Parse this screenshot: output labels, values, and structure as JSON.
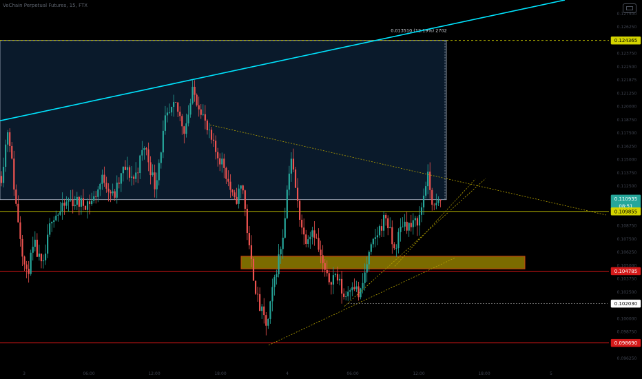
{
  "header": {
    "title": "VeChain Perpetual Futures, 15, FTX"
  },
  "colors": {
    "up": "#26a69a",
    "down": "#ef5350",
    "trend": "#00e5ff",
    "box": "#0a1a2b",
    "support": "#ff1a1a",
    "level": "#d4d400",
    "zone": "#7b6b00"
  },
  "chart_data": {
    "type": "candlestick",
    "title": "VeChain Perpetual Futures, 15, FTX",
    "ylim": [
      0.0968,
      0.1278
    ],
    "xlim": [
      0,
      932
    ],
    "x_ticks": [
      {
        "x": 35,
        "label": "3"
      },
      {
        "x": 129,
        "label": "06:00"
      },
      {
        "x": 224,
        "label": "12:00"
      },
      {
        "x": 320,
        "label": "18:00"
      },
      {
        "x": 417,
        "label": "4"
      },
      {
        "x": 512,
        "label": "06:00"
      },
      {
        "x": 608,
        "label": "12:00"
      },
      {
        "x": 703,
        "label": "18:00"
      },
      {
        "x": 800,
        "label": "5"
      }
    ],
    "y_ticks": [
      "0.127500",
      "0.126250",
      "0.125000",
      "0.123750",
      "0.122500",
      "0.121875",
      "0.121250",
      "0.120000",
      "0.118750",
      "0.117500",
      "0.116250",
      "0.115000",
      "0.113750",
      "0.112500",
      "0.111250",
      "0.110000",
      "0.108750",
      "0.107500",
      "0.106250",
      "0.105000",
      "0.103750",
      "0.102500",
      "0.101250",
      "0.100000",
      "0.098750",
      "0.097500",
      "0.096250"
    ],
    "price_labels": [
      {
        "value": 0.124365,
        "label": "0.124365",
        "style": "level"
      },
      {
        "value": 0.110935,
        "label": "0.110935",
        "style": "last"
      },
      {
        "value": 0.109855,
        "label": "0.109855",
        "style": "level"
      },
      {
        "value": 0.104785,
        "label": "0.104785",
        "style": "support"
      },
      {
        "value": 0.10203,
        "label": "0.102030",
        "style": "plain"
      },
      {
        "value": 0.09869,
        "label": "0.098690",
        "style": "support"
      }
    ],
    "countdown": "08:51",
    "measure_label": "0.013510 (12.19%) 2702",
    "horizontal_lines": [
      {
        "value": 0.124365,
        "color": "#d4d400",
        "dashed": true
      },
      {
        "value": 0.109855,
        "color": "#d4d400",
        "dashed": false
      },
      {
        "value": 0.104785,
        "color": "#ff1a1a",
        "dashed": false
      },
      {
        "value": 0.09869,
        "color": "#ff1a1a",
        "dashed": false
      }
    ],
    "range_box": {
      "x1": 0,
      "x2": 648,
      "top": 0.124365,
      "bottom": 0.110855
    },
    "zone": {
      "x1": 350,
      "x2": 762,
      "top": 0.10605,
      "bottom": 0.10498
    },
    "trendlines": [
      {
        "x1": 0,
        "y1": 0.11755,
        "x2": 820,
        "y2": 0.1278,
        "color": "#00e5ff",
        "width": 1.6,
        "dash": false
      },
      {
        "x1": 305,
        "y1": 0.1172,
        "x2": 880,
        "y2": 0.10955,
        "color": "#b8a400",
        "width": 0.8,
        "dash": true
      },
      {
        "x1": 390,
        "y1": 0.0985,
        "x2": 660,
        "y2": 0.1059,
        "color": "#b8a400",
        "width": 0.8,
        "dash": true
      },
      {
        "x1": 500,
        "y1": 0.1018,
        "x2": 705,
        "y2": 0.11265,
        "color": "#b8a400",
        "width": 0.8,
        "dash": true
      },
      {
        "x1": 573,
        "y1": 0.1052,
        "x2": 690,
        "y2": 0.1126,
        "color": "#b8a400",
        "width": 0.8,
        "dash": true
      },
      {
        "x1": 505,
        "y1": 0.10203,
        "x2": 882,
        "y2": 0.10203,
        "color": "#777777",
        "width": 0.8,
        "dash": true
      }
    ],
    "anchors": [
      [
        0,
        0.112
      ],
      [
        12,
        0.1172
      ],
      [
        22,
        0.111
      ],
      [
        38,
        0.1043
      ],
      [
        50,
        0.107
      ],
      [
        62,
        0.1048
      ],
      [
        75,
        0.1095
      ],
      [
        88,
        0.1098
      ],
      [
        100,
        0.1108
      ],
      [
        120,
        0.1105
      ],
      [
        135,
        0.1108
      ],
      [
        150,
        0.1128
      ],
      [
        165,
        0.111
      ],
      [
        180,
        0.1135
      ],
      [
        195,
        0.1126
      ],
      [
        210,
        0.1155
      ],
      [
        225,
        0.112
      ],
      [
        240,
        0.1175
      ],
      [
        255,
        0.1188
      ],
      [
        268,
        0.1168
      ],
      [
        280,
        0.12
      ],
      [
        292,
        0.1186
      ],
      [
        300,
        0.1168
      ],
      [
        312,
        0.115
      ],
      [
        325,
        0.1138
      ],
      [
        340,
        0.1105
      ],
      [
        352,
        0.1122
      ],
      [
        362,
        0.1065
      ],
      [
        375,
        0.102
      ],
      [
        388,
        0.1
      ],
      [
        398,
        0.104
      ],
      [
        410,
        0.1075
      ],
      [
        422,
        0.1148
      ],
      [
        432,
        0.1105
      ],
      [
        442,
        0.1075
      ],
      [
        455,
        0.1085
      ],
      [
        465,
        0.106
      ],
      [
        475,
        0.104
      ],
      [
        488,
        0.1045
      ],
      [
        500,
        0.1025
      ],
      [
        512,
        0.104
      ],
      [
        522,
        0.1025
      ],
      [
        535,
        0.106
      ],
      [
        548,
        0.108
      ],
      [
        560,
        0.1095
      ],
      [
        572,
        0.1065
      ],
      [
        585,
        0.109
      ],
      [
        598,
        0.1085
      ],
      [
        610,
        0.1095
      ],
      [
        620,
        0.113
      ],
      [
        630,
        0.11
      ],
      [
        640,
        0.1108
      ]
    ]
  }
}
